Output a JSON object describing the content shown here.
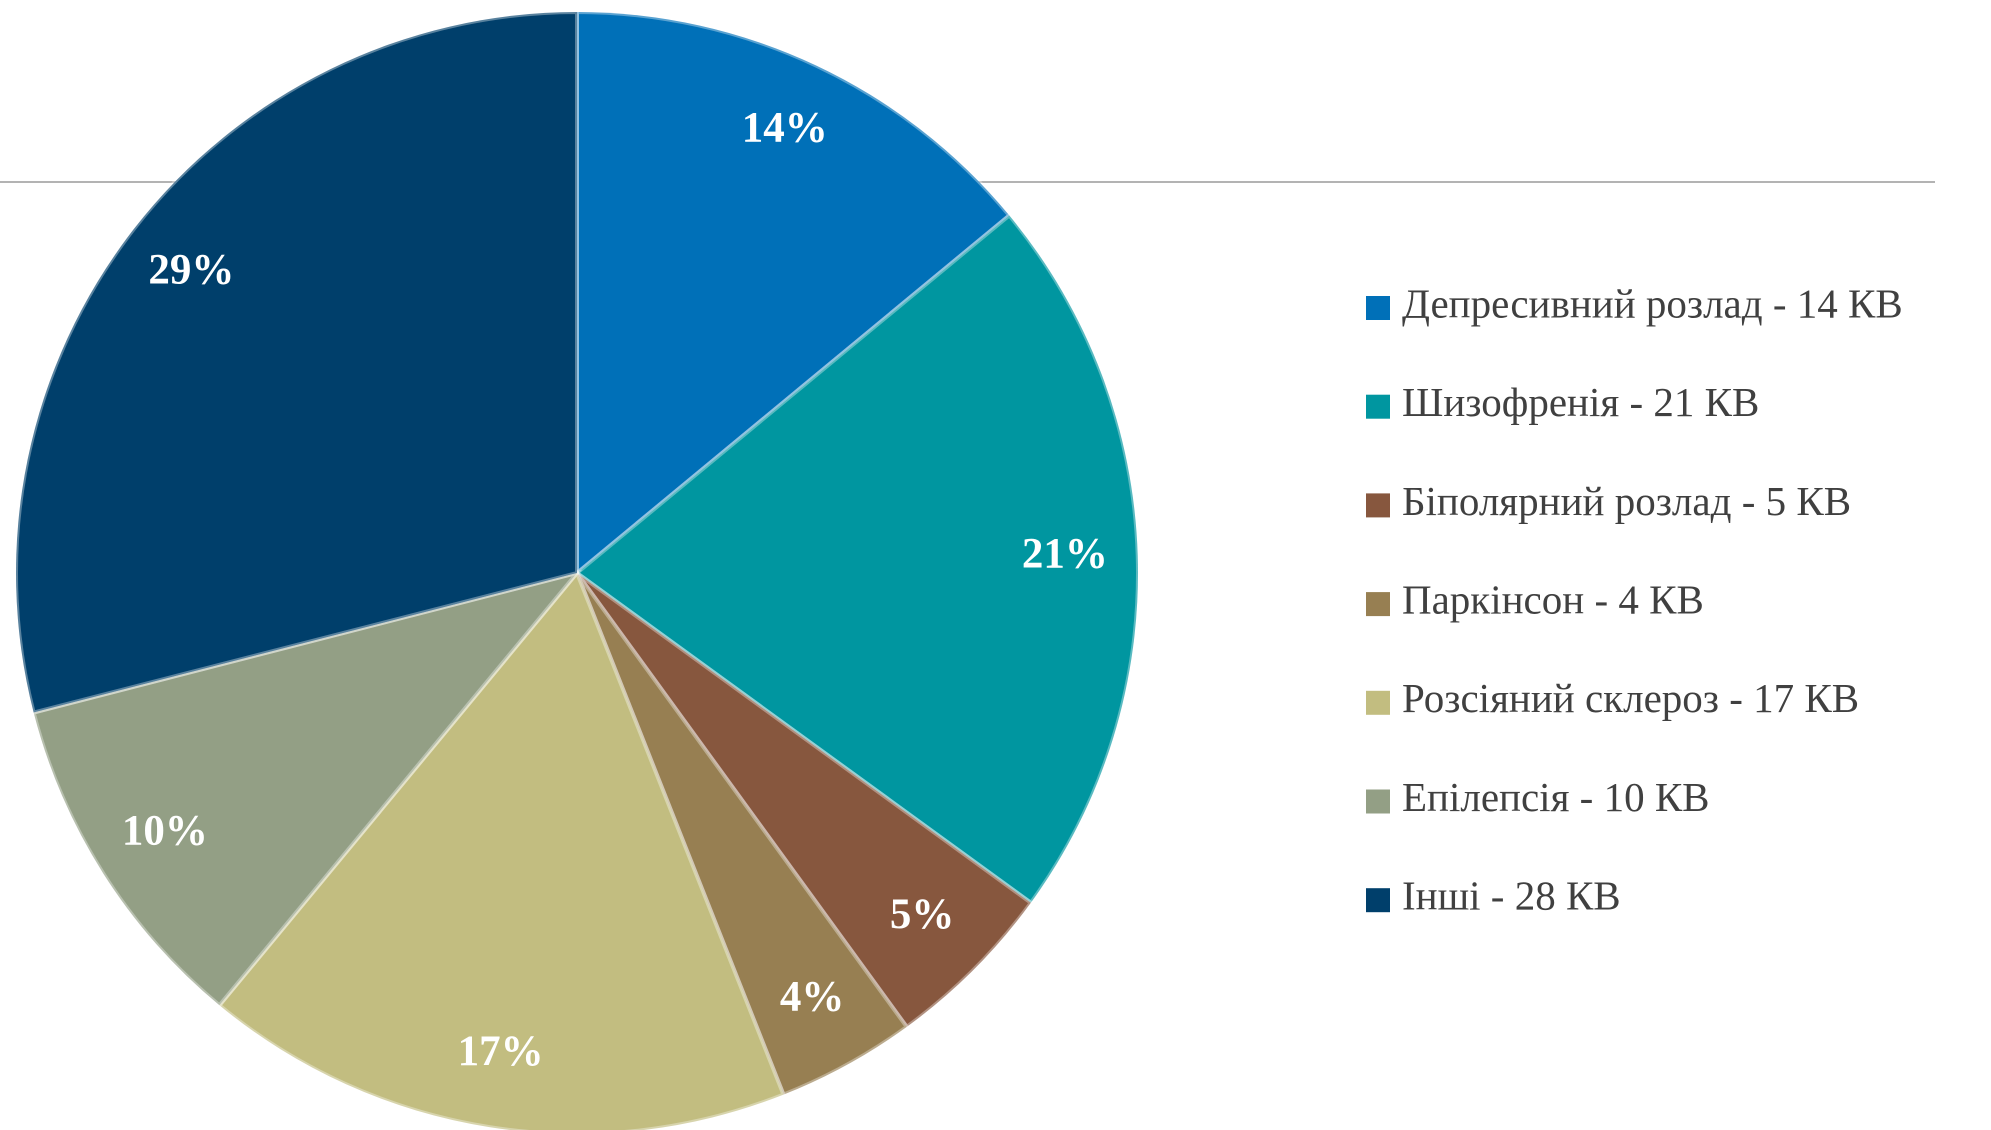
{
  "chart_data": {
    "type": "pie",
    "categories": [
      "Депресивний розлад - 14 КВ",
      "Шизофренія - 21 КВ",
      "Біполярний розлад - 5 КВ",
      "Паркінсон - 4 КВ",
      "Розсіяний склероз - 17 КВ",
      "Епілепсія - 10 КВ",
      "Інші - 28 КВ"
    ],
    "values": [
      14,
      21,
      5,
      4,
      17,
      10,
      29
    ],
    "value_labels": [
      "14%",
      "21%",
      "5%",
      "4%",
      "17%",
      "10%",
      "29%"
    ],
    "colors": [
      "#0070b8",
      "#0096a0",
      "#87573e",
      "#977f52",
      "#c2bd80",
      "#939f85",
      "#003f6b"
    ],
    "legend": "right"
  }
}
